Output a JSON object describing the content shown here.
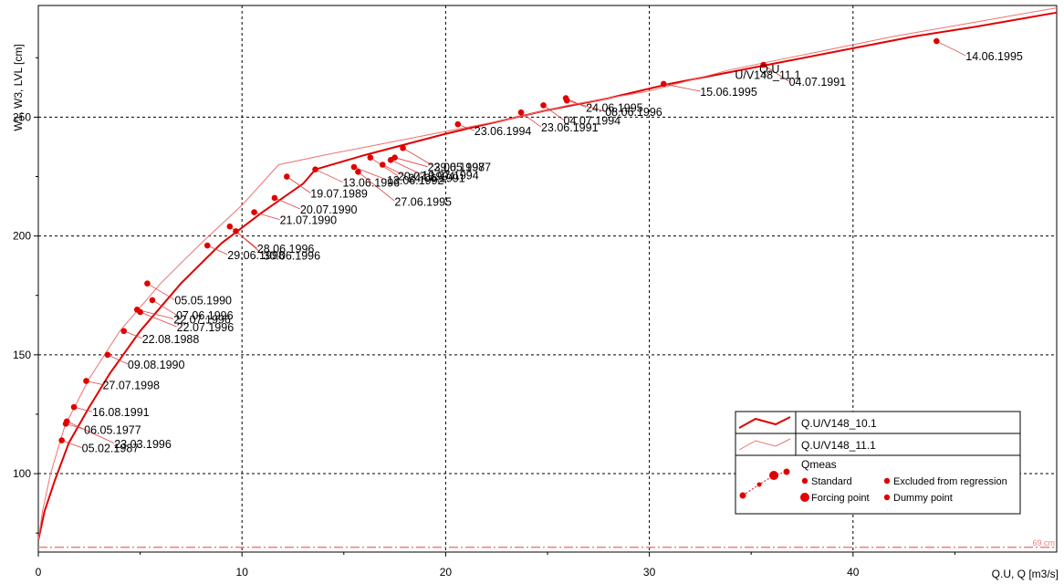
{
  "chart_data": {
    "type": "scatter",
    "ylabel": "W1, W3, LVL [cm]",
    "xlabel": "Q.U, Q [m3/s]",
    "xlim": [
      0,
      50
    ],
    "ylim": [
      67,
      297
    ],
    "x_ticks": [
      "0",
      "10",
      "20",
      "30",
      "40"
    ],
    "y_ticks": [
      "100",
      "150",
      "200",
      "250"
    ],
    "grid": true,
    "reference_line": {
      "value": 69,
      "label": "69 cm",
      "color": "#f08080"
    },
    "series": [
      {
        "name": "Q.U/V148_10.1",
        "color": "#e00000",
        "points": [
          [
            0,
            72
          ],
          [
            0.3,
            84
          ],
          [
            0.8,
            97
          ],
          [
            1.5,
            113
          ],
          [
            2.5,
            128
          ],
          [
            3.5,
            142
          ],
          [
            5,
            160
          ],
          [
            7,
            180
          ],
          [
            9,
            197
          ],
          [
            11,
            210
          ],
          [
            13,
            222
          ],
          [
            13.6,
            228
          ],
          [
            16,
            234
          ],
          [
            20,
            243
          ],
          [
            22,
            247
          ],
          [
            25,
            253
          ],
          [
            28,
            258
          ],
          [
            31,
            264
          ],
          [
            34,
            269
          ],
          [
            37,
            274
          ],
          [
            40,
            279
          ],
          [
            43,
            284
          ],
          [
            46,
            288
          ],
          [
            50,
            294
          ]
        ]
      },
      {
        "name": "Q.U/V148_11.1",
        "color": "#f07070",
        "points": [
          [
            0,
            72
          ],
          [
            0.2,
            84
          ],
          [
            0.6,
            100
          ],
          [
            1.3,
            120
          ],
          [
            2.5,
            140
          ],
          [
            4,
            160
          ],
          [
            6,
            180
          ],
          [
            8,
            197
          ],
          [
            10,
            213
          ],
          [
            11.8,
            230
          ],
          [
            14,
            234
          ],
          [
            17,
            239
          ],
          [
            20,
            244
          ],
          [
            23,
            249
          ],
          [
            26,
            255
          ],
          [
            30,
            261
          ],
          [
            34,
            270
          ],
          [
            38,
            277
          ],
          [
            42,
            284
          ],
          [
            46,
            290
          ],
          [
            50,
            296
          ]
        ]
      }
    ],
    "measurements": [
      {
        "x": 1.15,
        "y": 114,
        "label": "05.02.1987"
      },
      {
        "x": 1.35,
        "y": 121,
        "label": "06.05.1977"
      },
      {
        "x": 1.4,
        "y": 122,
        "label": "23.03.1996"
      },
      {
        "x": 1.75,
        "y": 128,
        "label": "16.08.1991"
      },
      {
        "x": 2.35,
        "y": 139,
        "label": "27.07.1998"
      },
      {
        "x": 3.4,
        "y": 150,
        "label": "09.08.1990"
      },
      {
        "x": 4.2,
        "y": 160,
        "label": "22.08.1988"
      },
      {
        "x": 4.85,
        "y": 169,
        "label": "22.07.1996"
      },
      {
        "x": 5.0,
        "y": 168,
        "label": "22.07.1996"
      },
      {
        "x": 5.6,
        "y": 173,
        "label": "07.06.1996"
      },
      {
        "x": 5.35,
        "y": 180,
        "label": "05.05.1990"
      },
      {
        "x": 8.3,
        "y": 196,
        "label": "29.06.1998"
      },
      {
        "x": 9.4,
        "y": 204,
        "label": "28.06.1996"
      },
      {
        "x": 9.7,
        "y": 202,
        "label": "30.06.1996"
      },
      {
        "x": 10.6,
        "y": 210,
        "label": "21.07.1990"
      },
      {
        "x": 11.6,
        "y": 216,
        "label": "20.07.1990"
      },
      {
        "x": 12.2,
        "y": 225,
        "label": "19.07.1989"
      },
      {
        "x": 13.6,
        "y": 228,
        "label": "13.06.1996"
      },
      {
        "x": 15.5,
        "y": 229,
        "label": "13.06.1992"
      },
      {
        "x": 15.7,
        "y": 227,
        "label": "27.06.1995"
      },
      {
        "x": 16.3,
        "y": 233,
        "label": "20.07.1994"
      },
      {
        "x": 16.9,
        "y": 230,
        "label": "24.06.1991"
      },
      {
        "x": 17.3,
        "y": 232,
        "label": "19.07.1994"
      },
      {
        "x": 17.9,
        "y": 237,
        "label": "29.05.1987"
      },
      {
        "x": 17.5,
        "y": 233,
        "label": "23.06.1997"
      },
      {
        "x": 20.6,
        "y": 247,
        "label": "23.06.1994"
      },
      {
        "x": 23.7,
        "y": 252,
        "label": "23.06.1991"
      },
      {
        "x": 24.8,
        "y": 255,
        "label": "04.07.1994"
      },
      {
        "x": 25.9,
        "y": 258,
        "label": "24.06.1995"
      },
      {
        "x": 25.95,
        "y": 257,
        "label": "08.06.1996"
      },
      {
        "x": 30.7,
        "y": 264,
        "label": "15.06.1995"
      },
      {
        "x": 35.6,
        "y": 272,
        "label": "04.07.1991"
      },
      {
        "x": 44.1,
        "y": 282,
        "label": "14.06.1995"
      }
    ],
    "curve_labels": [
      {
        "text": "Q.U",
        "x": 35.4,
        "y": 268.5
      },
      {
        "text": "U/V148_11.1",
        "x": 34.2,
        "y": 266
      }
    ],
    "legend": {
      "position": "bottom-right",
      "entries": [
        "Q.U/V148_10.1",
        "Q.U/V148_11.1"
      ],
      "qmeas_title": "Qmeas",
      "qmeas_items": [
        "Standard",
        "Excluded from regression",
        "Forcing point",
        "Dummy point"
      ]
    }
  }
}
